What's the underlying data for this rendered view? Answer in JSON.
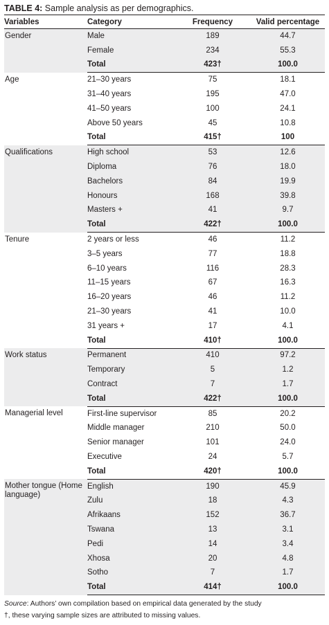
{
  "caption": {
    "label": "TABLE 4:",
    "text": " Sample analysis as per demographics."
  },
  "headers": [
    "Variables",
    "Category",
    "Frequency",
    "Valid percentage"
  ],
  "groups": [
    {
      "variable": "Gender",
      "shade": true,
      "rows": [
        [
          "Male",
          "189",
          "44.7"
        ],
        [
          "Female",
          "234",
          "55.3"
        ],
        [
          "Total",
          "423†",
          "100.0"
        ]
      ]
    },
    {
      "variable": "Age",
      "shade": false,
      "rows": [
        [
          "21–30 years",
          "75",
          "18.1"
        ],
        [
          "31–40 years",
          "195",
          "47.0"
        ],
        [
          "41–50 years",
          "100",
          "24.1"
        ],
        [
          "Above 50 years",
          "45",
          "10.8"
        ],
        [
          "Total",
          "415†",
          "100"
        ]
      ]
    },
    {
      "variable": "Qualifications",
      "shade": true,
      "rows": [
        [
          "High school",
          "53",
          "12.6"
        ],
        [
          "Diploma",
          "76",
          "18.0"
        ],
        [
          "Bachelors",
          "84",
          "19.9"
        ],
        [
          "Honours",
          "168",
          "39.8"
        ],
        [
          "Masters +",
          "41",
          "9.7"
        ],
        [
          "Total",
          "422†",
          "100.0"
        ]
      ]
    },
    {
      "variable": "Tenure",
      "shade": false,
      "rows": [
        [
          "2 years or less",
          "46",
          "11.2"
        ],
        [
          "3–5 years",
          "77",
          "18.8"
        ],
        [
          "6–10 years",
          "116",
          "28.3"
        ],
        [
          "11–15 years",
          "67",
          "16.3"
        ],
        [
          "16–20 years",
          "46",
          "11.2"
        ],
        [
          "21–30 years",
          "41",
          "10.0"
        ],
        [
          "31 years +",
          "17",
          "4.1"
        ],
        [
          "Total",
          "410†",
          "100.0"
        ]
      ]
    },
    {
      "variable": "Work status",
      "shade": true,
      "rows": [
        [
          "Permanent",
          "410",
          "97.2"
        ],
        [
          "Temporary",
          "5",
          "1.2"
        ],
        [
          "Contract",
          "7",
          "1.7"
        ],
        [
          "Total",
          "422†",
          "100.0"
        ]
      ]
    },
    {
      "variable": "Managerial level",
      "shade": false,
      "rows": [
        [
          "First-line supervisor",
          "85",
          "20.2"
        ],
        [
          "Middle manager",
          "210",
          "50.0"
        ],
        [
          "Senior manager",
          "101",
          "24.0"
        ],
        [
          "Executive",
          "24",
          "5.7"
        ],
        [
          "Total",
          "420†",
          "100.0"
        ]
      ]
    },
    {
      "variable": "Mother tongue (Home language)",
      "shade": true,
      "rows": [
        [
          "English",
          "190",
          "45.9"
        ],
        [
          "Zulu",
          "18",
          "4.3"
        ],
        [
          "Afrikaans",
          "152",
          "36.7"
        ],
        [
          "Tswana",
          "13",
          "3.1"
        ],
        [
          "Pedi",
          "14",
          "3.4"
        ],
        [
          "Xhosa",
          "20",
          "4.8"
        ],
        [
          "Sotho",
          "7",
          "1.7"
        ],
        [
          "Total",
          "414†",
          "100.0"
        ]
      ]
    }
  ],
  "footnotes": {
    "source_label": "Source",
    "source_text": ": Authors’ own compilation based on empirical data generated by the study",
    "dagger_note": "†, these varying sample sizes are attributed to missing values."
  }
}
